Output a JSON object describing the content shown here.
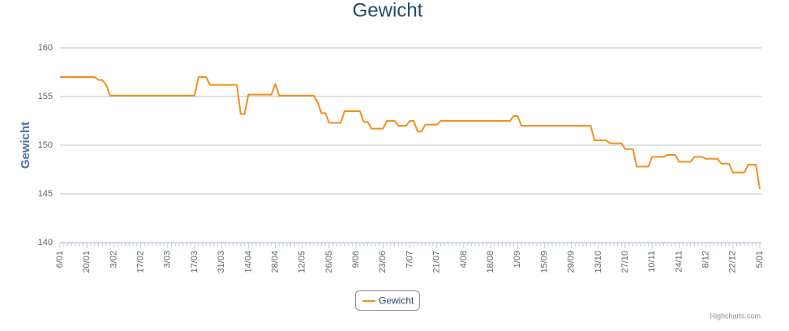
{
  "chart_data": {
    "type": "line",
    "title": "Gewicht",
    "y_label": "Gewicht",
    "credits": "Highcharts.com",
    "categories": [
      "6/01",
      null,
      null,
      null,
      null,
      null,
      null,
      "20/01",
      null,
      null,
      null,
      null,
      null,
      null,
      "3/02",
      null,
      null,
      null,
      null,
      null,
      null,
      "17/02",
      null,
      null,
      null,
      null,
      null,
      null,
      "3/03",
      null,
      null,
      null,
      null,
      null,
      null,
      "17/03",
      null,
      null,
      null,
      null,
      null,
      null,
      "31/03",
      null,
      null,
      null,
      null,
      null,
      null,
      "14/04",
      null,
      null,
      null,
      null,
      null,
      null,
      "28/04",
      null,
      null,
      null,
      null,
      null,
      null,
      "12/05",
      null,
      null,
      null,
      null,
      null,
      null,
      "26/05",
      null,
      null,
      null,
      null,
      null,
      null,
      "9/06",
      null,
      null,
      null,
      null,
      null,
      null,
      "23/06",
      null,
      null,
      null,
      null,
      null,
      null,
      "7/07",
      null,
      null,
      null,
      null,
      null,
      null,
      "21/07",
      null,
      null,
      null,
      null,
      null,
      null,
      "4/08",
      null,
      null,
      null,
      null,
      null,
      null,
      "18/08",
      null,
      null,
      null,
      null,
      null,
      null,
      "1/09",
      null,
      null,
      null,
      null,
      null,
      null,
      "15/09",
      null,
      null,
      null,
      null,
      null,
      null,
      "29/09",
      null,
      null,
      null,
      null,
      null,
      null,
      "13/10",
      null,
      null,
      null,
      null,
      null,
      null,
      "27/10",
      null,
      null,
      null,
      null,
      null,
      null,
      "10/11",
      null,
      null,
      null,
      null,
      null,
      null,
      "24/11",
      null,
      null,
      null,
      null,
      null,
      null,
      "8/12",
      null,
      null,
      null,
      null,
      null,
      null,
      "22/12",
      null,
      null,
      null,
      null,
      null,
      null,
      "5/01"
    ],
    "series": [
      {
        "name": "Gewicht",
        "color": "#f28f21",
        "values": [
          157,
          157,
          157,
          157,
          157,
          157,
          157,
          157,
          157,
          157,
          156.7,
          156.7,
          156.2,
          155.1,
          155.1,
          155.1,
          155.1,
          155.1,
          155.1,
          155.1,
          155.1,
          155.1,
          155.1,
          155.1,
          155.1,
          155.1,
          155.1,
          155.1,
          155.1,
          155.1,
          155.1,
          155.1,
          155.1,
          155.1,
          155.1,
          155.1,
          157,
          157,
          157,
          156.2,
          156.2,
          156.2,
          156.2,
          156.2,
          156.2,
          156.2,
          156.2,
          153.2,
          153.2,
          155.2,
          155.2,
          155.2,
          155.2,
          155.2,
          155.2,
          155.2,
          156.3,
          155.1,
          155.1,
          155.1,
          155.1,
          155.1,
          155.1,
          155.1,
          155.1,
          155.1,
          155.1,
          154.4,
          153.3,
          153.3,
          152.3,
          152.3,
          152.3,
          152.3,
          153.5,
          153.5,
          153.5,
          153.5,
          153.5,
          152.4,
          152.4,
          151.7,
          151.7,
          151.7,
          151.7,
          152.5,
          152.5,
          152.5,
          152,
          152,
          152,
          152.5,
          152.5,
          151.4,
          151.4,
          152.1,
          152.1,
          152.1,
          152.1,
          152.5,
          152.5,
          152.5,
          152.5,
          152.5,
          152.5,
          152.5,
          152.5,
          152.5,
          152.5,
          152.5,
          152.5,
          152.5,
          152.5,
          152.5,
          152.5,
          152.5,
          152.5,
          152.5,
          153,
          153,
          152,
          152,
          152,
          152,
          152,
          152,
          152,
          152,
          152,
          152,
          152,
          152,
          152,
          152,
          152,
          152,
          152,
          152,
          152,
          150.5,
          150.5,
          150.5,
          150.5,
          150.2,
          150.2,
          150.2,
          150.2,
          149.6,
          149.6,
          149.6,
          147.8,
          147.8,
          147.8,
          147.8,
          148.8,
          148.8,
          148.8,
          148.8,
          149,
          149,
          149,
          148.3,
          148.3,
          148.3,
          148.3,
          148.8,
          148.8,
          148.8,
          148.6,
          148.6,
          148.6,
          148.6,
          148.1,
          148.1,
          148.1,
          147.2,
          147.2,
          147.2,
          147.2,
          148,
          148,
          148,
          145.5
        ]
      }
    ],
    "ylim": [
      140,
      160
    ],
    "yticks": [
      140,
      145,
      150,
      155,
      160
    ],
    "grid": true,
    "legend": "bottom"
  }
}
